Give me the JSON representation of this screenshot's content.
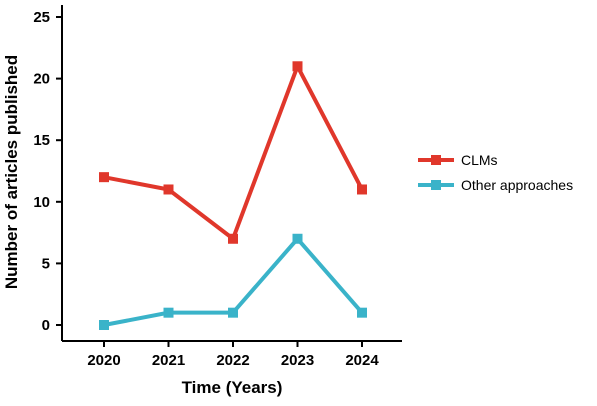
{
  "chart_data": {
    "type": "line",
    "title": "",
    "xlabel": "Time (Years)",
    "ylabel": "Number of articles published",
    "categories": [
      "2020",
      "2021",
      "2022",
      "2023",
      "2024"
    ],
    "ylim": [
      0,
      25
    ],
    "yticks": [
      "0",
      "5",
      "10",
      "15",
      "20",
      "25"
    ],
    "grid": false,
    "legend_position": "right",
    "series": [
      {
        "name": "CLMs",
        "color": "#e0372b",
        "marker": "square",
        "values": [
          12,
          11,
          7,
          21,
          11
        ]
      },
      {
        "name": "Other approaches",
        "color": "#3ab3c9",
        "marker": "square",
        "values": [
          0,
          1,
          1,
          7,
          1
        ]
      }
    ]
  }
}
